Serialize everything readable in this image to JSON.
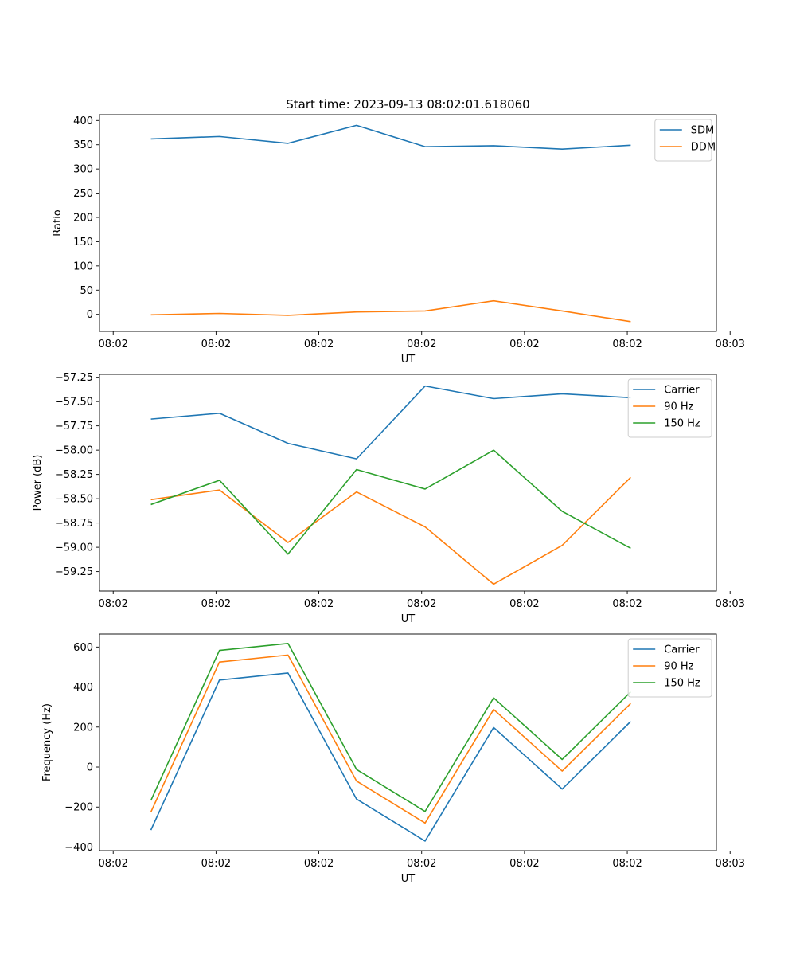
{
  "figure_title": "Start time: 2023-09-13 08:02:01.618060",
  "colors": {
    "c0": "#1f77b4",
    "c1": "#ff7f0e",
    "c2": "#2ca02c"
  },
  "chart_data": [
    {
      "type": "line",
      "title": "Start time: 2023-09-13 08:02:01.618060",
      "xlabel": "UT",
      "ylabel": "Ratio",
      "x": [
        1,
        2,
        3,
        4,
        5,
        6,
        7,
        8
      ],
      "xlim": [
        0.25,
        9.25
      ],
      "xticks": [
        0.45,
        1.95,
        3.45,
        4.95,
        6.45,
        7.95,
        9.45
      ],
      "xtick_labels": [
        "08:02",
        "08:02",
        "08:02",
        "08:02",
        "08:02",
        "08:02",
        "08:03"
      ],
      "ylim": [
        -35,
        412
      ],
      "yticks": [
        0,
        50,
        100,
        150,
        200,
        250,
        300,
        350,
        400
      ],
      "ytick_labels": [
        "0",
        "50",
        "100",
        "150",
        "200",
        "250",
        "300",
        "350",
        "400"
      ],
      "legend": "upper right",
      "series": [
        {
          "name": "SDM",
          "color": "#1f77b4",
          "values": [
            362,
            367,
            353,
            390,
            346,
            348,
            341,
            349
          ]
        },
        {
          "name": "DDM",
          "color": "#ff7f0e",
          "values": [
            -1,
            2,
            -2,
            5,
            7,
            28,
            7,
            -15
          ]
        }
      ]
    },
    {
      "type": "line",
      "title": "",
      "xlabel": "UT",
      "ylabel": "Power (dB)",
      "x": [
        1,
        2,
        3,
        4,
        5,
        6,
        7,
        8
      ],
      "xlim": [
        0.25,
        9.25
      ],
      "xticks": [
        0.45,
        1.95,
        3.45,
        4.95,
        6.45,
        7.95,
        9.45
      ],
      "xtick_labels": [
        "08:02",
        "08:02",
        "08:02",
        "08:02",
        "08:02",
        "08:02",
        "08:03"
      ],
      "ylim": [
        -59.45,
        -57.22
      ],
      "yticks": [
        -59.25,
        -59.0,
        -58.75,
        -58.5,
        -58.25,
        -58.0,
        -57.75,
        -57.5,
        -57.25
      ],
      "ytick_labels": [
        "−59.25",
        "−59.00",
        "−58.75",
        "−58.50",
        "−58.25",
        "−58.00",
        "−57.75",
        "−57.50",
        "−57.25"
      ],
      "legend": "upper right",
      "series": [
        {
          "name": "Carrier",
          "color": "#1f77b4",
          "values": [
            -57.68,
            -57.62,
            -57.93,
            -58.09,
            -57.34,
            -57.47,
            -57.42,
            -57.46
          ]
        },
        {
          "name": "90 Hz",
          "color": "#ff7f0e",
          "values": [
            -58.51,
            -58.41,
            -58.95,
            -58.43,
            -58.79,
            -59.38,
            -58.98,
            -58.28
          ]
        },
        {
          "name": "150 Hz",
          "color": "#2ca02c",
          "values": [
            -58.56,
            -58.31,
            -59.07,
            -58.2,
            -58.4,
            -58.0,
            -58.63,
            -59.01
          ]
        }
      ]
    },
    {
      "type": "line",
      "title": "",
      "xlabel": "UT",
      "ylabel": "Frequency (Hz)",
      "x": [
        1,
        2,
        3,
        4,
        5,
        6,
        7,
        8
      ],
      "xlim": [
        0.25,
        9.25
      ],
      "xticks": [
        0.45,
        1.95,
        3.45,
        4.95,
        6.45,
        7.95,
        9.45
      ],
      "xtick_labels": [
        "08:02",
        "08:02",
        "08:02",
        "08:02",
        "08:02",
        "08:02",
        "08:03"
      ],
      "ylim": [
        -418,
        665
      ],
      "yticks": [
        -400,
        -200,
        0,
        200,
        400,
        600
      ],
      "ytick_labels": [
        "−400",
        "−200",
        "0",
        "200",
        "400",
        "600"
      ],
      "legend": "upper right",
      "series": [
        {
          "name": "Carrier",
          "color": "#1f77b4",
          "values": [
            -315,
            435,
            470,
            -160,
            -370,
            198,
            -110,
            228
          ]
        },
        {
          "name": "90 Hz",
          "color": "#ff7f0e",
          "values": [
            -225,
            525,
            560,
            -70,
            -280,
            288,
            -20,
            318
          ]
        },
        {
          "name": "150 Hz",
          "color": "#2ca02c",
          "values": [
            -167,
            583,
            618,
            -12,
            -222,
            346,
            38,
            376
          ]
        }
      ]
    }
  ]
}
